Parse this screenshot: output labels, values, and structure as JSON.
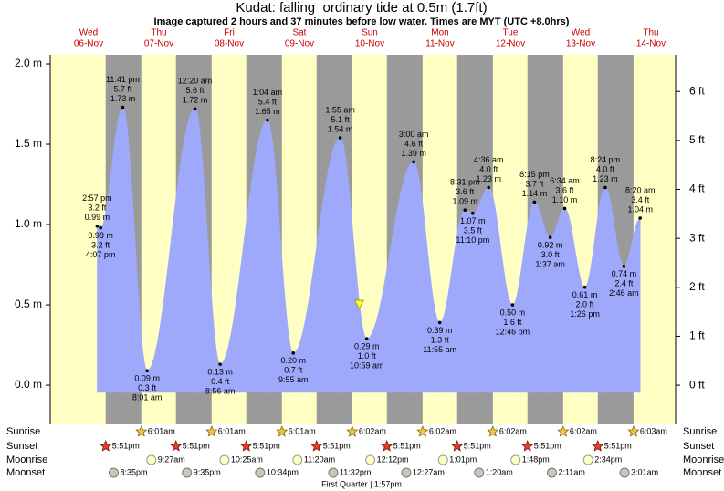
{
  "chart_data": {
    "type": "tide",
    "title": "Kudat: falling  ordinary tide at 0.5m (1.7ft)",
    "subtitle": "Image captured 2 hours and 37 minutes before low water. Times are MYT (UTC +8.0hrs)",
    "xlim": [
      5.955,
      14.851
    ],
    "xticks": [
      {
        "value": 6.5,
        "label": "Wed",
        "date": "06-Nov"
      },
      {
        "value": 7.5,
        "label": "Thu",
        "date": "07-Nov"
      },
      {
        "value": 8.5,
        "label": "Fri",
        "date": "08-Nov"
      },
      {
        "value": 9.5,
        "label": "Sat",
        "date": "09-Nov"
      },
      {
        "value": 10.5,
        "label": "Sun",
        "date": "10-Nov"
      },
      {
        "value": 11.5,
        "label": "Mon",
        "date": "11-Nov"
      },
      {
        "value": 12.5,
        "label": "Tue",
        "date": "12-Nov"
      },
      {
        "value": 13.5,
        "label": "Wed",
        "date": "13-Nov"
      },
      {
        "value": 14.5,
        "label": "Thu",
        "date": "14-Nov"
      }
    ],
    "ylim": [
      -0.244,
      2.057
    ],
    "yticks": [
      {
        "value": 0,
        "label": "0.0 m"
      },
      {
        "value": 0.5,
        "label": "0.5 m"
      },
      {
        "value": 1,
        "label": "1.0 m"
      },
      {
        "value": 1.5,
        "label": "1.5 m"
      },
      {
        "value": 2,
        "label": "2.0 m"
      }
    ],
    "y2lim": [
      -0.8,
      6.75
    ],
    "y2ticks": [
      {
        "value": 0,
        "label": "0 ft"
      },
      {
        "value": 1,
        "label": "1 ft"
      },
      {
        "value": 2,
        "label": "2 ft"
      },
      {
        "value": 3,
        "label": "3 ft"
      },
      {
        "value": 4,
        "label": "4 ft"
      },
      {
        "value": 5,
        "label": "5 ft"
      },
      {
        "value": 6,
        "label": "6 ft"
      }
    ],
    "day_color": "#ffffc4",
    "night_color": "#9a9a9a",
    "color": "#9ea9fb",
    "label_color": "#cc0000",
    "tides": {
      "x": [
        6.6229,
        6.6715,
        6.9868,
        7.334,
        8.0139,
        8.3722,
        9.0444,
        9.4132,
        10.0799,
        10.4576,
        11.125,
        11.4965,
        11.8549,
        11.9653,
        12.1917,
        12.5319,
        12.8438,
        13.0674,
        13.2736,
        13.5597,
        13.85,
        14.1153,
        14.3472
      ],
      "values": [
        0.99,
        0.98,
        1.73,
        0.09,
        1.72,
        0.13,
        1.65,
        0.2,
        1.54,
        0.29,
        1.39,
        0.39,
        1.09,
        1.07,
        1.23,
        0.5,
        1.14,
        0.92,
        1.1,
        0.61,
        1.23,
        0.74,
        1.04
      ],
      "value_labels": [
        "0.99 m",
        "0.98 m",
        "1.73 m",
        "0.09 m",
        "1.72 m",
        "0.13 m",
        "1.65 m",
        "0.20 m",
        "1.54 m",
        "0.29 m",
        "1.39 m",
        "0.39 m",
        "1.09 m",
        "1.07 m",
        "1.23 m",
        "0.50 m",
        "1.14 m",
        "0.92 m",
        "1.10 m",
        "0.61 m",
        "1.23 m",
        "0.74 m",
        "1.04 m"
      ],
      "ft_labels": [
        "3.2 ft",
        "3.2 ft",
        "5.7 ft",
        "0.3 ft",
        "5.6 ft",
        "0.4 ft",
        "5.4 ft",
        "0.7 ft",
        "5.1 ft",
        "1.0 ft",
        "4.6 ft",
        "1.3 ft",
        "3.6 ft",
        "3.5 ft",
        "4.0 ft",
        "1.6 ft",
        "3.7 ft",
        "3.0 ft",
        "3.6 ft",
        "2.0 ft",
        "4.0 ft",
        "2.4 ft",
        "3.4 ft"
      ],
      "times": [
        "2:57 pm",
        "4:07 pm",
        "11:41 pm",
        "8:01 am",
        "12:20 am",
        "8:56 am",
        "1:04 am",
        "9:55 am",
        "1:55 am",
        "10:59 am",
        "3:00 am",
        "11:55 am",
        "8:31 pm",
        "11:10 pm",
        "4:36 am",
        "12:46 pm",
        "8:15 pm",
        "1:37 am",
        "6:34 am",
        "1:26 pm",
        "8:24 pm",
        "2:46 am",
        "8:20 am"
      ]
    },
    "now": {
      "x": 10.349,
      "value": 0.5
    },
    "sunrise": {
      "label": "Sunrise",
      "x": [
        7.2507,
        8.2507,
        9.2507,
        10.2514,
        11.2514,
        12.2514,
        13.2514,
        14.2521
      ],
      "times": [
        "6:01am",
        "6:01am",
        "6:01am",
        "6:02am",
        "6:02am",
        "6:02am",
        "6:02am",
        "6:03am"
      ]
    },
    "sunset": {
      "label": "Sunset",
      "x": [
        6.7438,
        7.7438,
        8.7438,
        9.7438,
        10.7438,
        11.7438,
        12.7438,
        13.7438
      ],
      "times": [
        "5:51pm",
        "5:51pm",
        "5:51pm",
        "5:51pm",
        "5:51pm",
        "5:51pm",
        "5:51pm",
        "5:51pm"
      ]
    },
    "moonrise": {
      "label": "Moonrise",
      "x": [
        7.3938,
        8.434,
        9.4722,
        10.5083,
        11.5424,
        12.575,
        13.6069
      ],
      "times": [
        "9:27am",
        "10:25am",
        "11:20am",
        "12:12pm",
        "1:01pm",
        "1:48pm",
        "2:34pm"
      ]
    },
    "moonset": {
      "label": "Moonset",
      "x": [
        6.8576,
        7.8993,
        8.9403,
        9.9806,
        11.0188,
        12.0556,
        13.091,
        14.1257
      ],
      "times": [
        "8:35pm",
        "9:35pm",
        "10:34pm",
        "11:32pm",
        "12:27am",
        "1:20am",
        "2:11am",
        "3:01am"
      ]
    },
    "moon_phase": "First Quarter | 1:57pm"
  }
}
